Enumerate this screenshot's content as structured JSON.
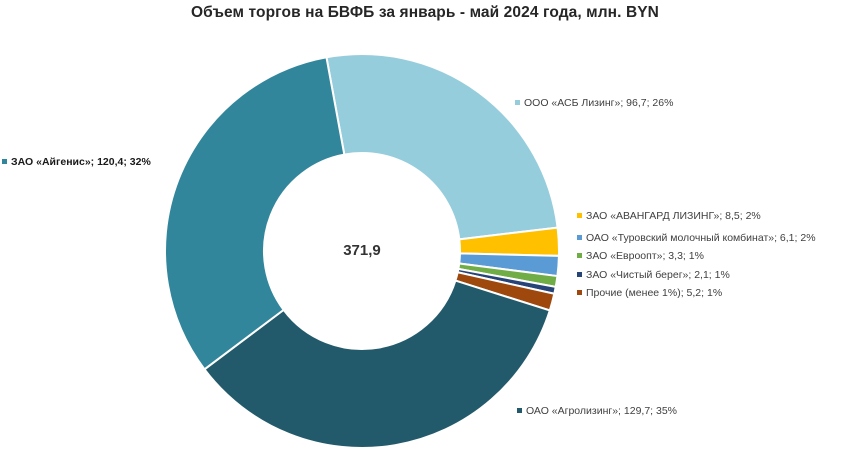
{
  "chart_data": {
    "type": "pie",
    "variant": "donut",
    "title": "Объем торгов на БВФБ за январь - май 2024 года, млн. BYN",
    "center_label": "371,9",
    "total": 371.9,
    "start_angle_deg": -10.4,
    "direction": "clockwise",
    "slices": [
      {
        "name": "ООО «АСБ Лизинг»",
        "value": 96.7,
        "value_label": "96,7",
        "percent_label": "26%",
        "color": "#96cddc"
      },
      {
        "name": "ЗАО «АВАНГАРД ЛИЗИНГ»",
        "value": 8.5,
        "value_label": "8,5",
        "percent_label": "2%",
        "color": "#ffc000"
      },
      {
        "name": "ОАО «Туровский молочный комбинат»",
        "value": 6.1,
        "value_label": "6,1",
        "percent_label": "2%",
        "color": "#5b9bd5"
      },
      {
        "name": "ЗАО «Евроопт»",
        "value": 3.3,
        "value_label": "3,3",
        "percent_label": "1%",
        "color": "#70ad47"
      },
      {
        "name": "ЗАО «Чистый берег»",
        "value": 2.1,
        "value_label": "2,1",
        "percent_label": "1%",
        "color": "#264478"
      },
      {
        "name": "Прочие (менее 1%)",
        "value": 5.2,
        "value_label": "5,2",
        "percent_label": "1%",
        "color": "#9e480e"
      },
      {
        "name": "ОАО «Агролизинг»",
        "value": 129.7,
        "value_label": "129,7",
        "percent_label": "35%",
        "color": "#225a6b"
      },
      {
        "name": "ЗАО «Айгенис»",
        "value": 120.4,
        "value_label": "120,4",
        "percent_label": "32%",
        "color": "#31869b",
        "bold": true
      }
    ],
    "legend": "data labels beside slices"
  }
}
